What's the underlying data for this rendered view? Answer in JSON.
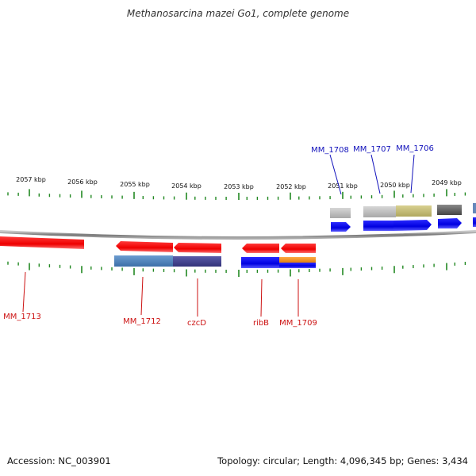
{
  "title": "Methanosarcina mazei Go1, complete genome",
  "footer": {
    "accession": "Accession: NC_003901",
    "stats": "Topology: circular; Length: 4,096,345 bp; Genes: 3,434"
  },
  "kbp_labels": [
    "2057 kbp",
    "2056 kbp",
    "2055 kbp",
    "2054 kbp",
    "2053 kbp",
    "2052 kbp",
    "2051 kbp",
    "2050 kbp",
    "2049 kbp"
  ],
  "gene_labels_top": [
    "MM_1708",
    "MM_1707",
    "MM_1706"
  ],
  "gene_labels_bottom": [
    "MM_1713",
    "MM_1712",
    "czcD",
    "ribB",
    "MM_1709"
  ],
  "colors": {
    "reverse_gene": "#ee1111",
    "forward_gene": "#1111dd",
    "label_reverse": "#cc1111",
    "label_forward": "#1111bb",
    "tick": "#228822",
    "backbone": "#888888"
  }
}
